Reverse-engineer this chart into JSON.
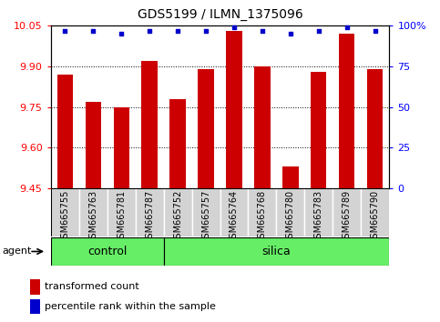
{
  "title": "GDS5199 / ILMN_1375096",
  "samples": [
    "GSM665755",
    "GSM665763",
    "GSM665781",
    "GSM665787",
    "GSM665752",
    "GSM665757",
    "GSM665764",
    "GSM665768",
    "GSM665780",
    "GSM665783",
    "GSM665789",
    "GSM665790"
  ],
  "transformed_count": [
    9.87,
    9.77,
    9.75,
    9.92,
    9.78,
    9.89,
    10.03,
    9.9,
    9.53,
    9.88,
    10.02,
    9.89
  ],
  "percentile_rank": [
    97,
    97,
    95,
    97,
    97,
    97,
    99,
    97,
    95,
    97,
    99,
    97
  ],
  "control_count": 4,
  "silica_count": 8,
  "ylim_left": [
    9.45,
    10.05
  ],
  "ylim_right": [
    0,
    100
  ],
  "yticks_left": [
    9.45,
    9.6,
    9.75,
    9.9,
    10.05
  ],
  "yticks_right": [
    0,
    25,
    50,
    75,
    100
  ],
  "bar_color": "#cc0000",
  "dot_color": "#0000cc",
  "group_color": "#66ee66",
  "sample_bg_color": "#d3d3d3",
  "legend_bar_label": "transformed count",
  "legend_dot_label": "percentile rank within the sample",
  "agent_label": "agent",
  "control_label": "control",
  "silica_label": "silica"
}
